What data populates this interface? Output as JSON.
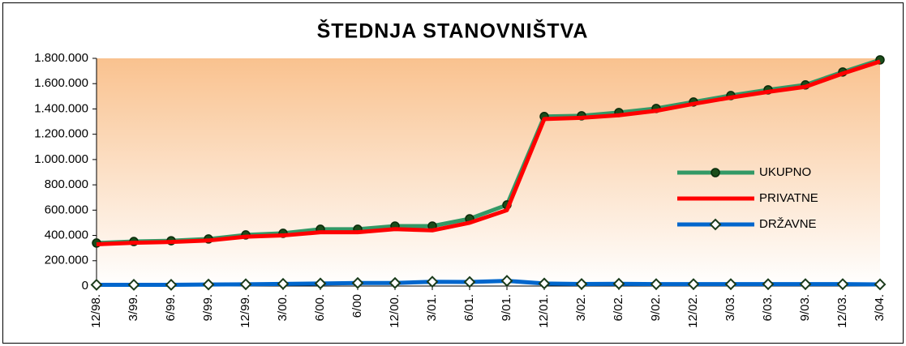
{
  "chart_data": {
    "type": "line",
    "title": "ŠTEDNJA STANOVNIŠTVA",
    "categories": [
      "12/98.",
      "3/99.",
      "6/99.",
      "9/99.",
      "12/99.",
      "3/00.",
      "6/00.",
      "6/00",
      "12/00.",
      "3/01.",
      "6/01.",
      "9/01.",
      "12/01.",
      "3/02.",
      "6/02.",
      "9/02.",
      "12/02.",
      "3/03.",
      "6/03.",
      "9/03.",
      "12/03.",
      "3/04."
    ],
    "series": [
      {
        "name": "UKUPNO",
        "color": "#339966",
        "marker": "circle",
        "values": [
          340000,
          352000,
          358000,
          372000,
          404000,
          417000,
          449000,
          449000,
          474000,
          474000,
          532000,
          641000,
          1340000,
          1346000,
          1372000,
          1404000,
          1455000,
          1506000,
          1551000,
          1590000,
          1692000,
          1788000
        ]
      },
      {
        "name": "PRIVATNE",
        "color": "#ff0000",
        "marker": "none",
        "values": [
          330000,
          342000,
          348000,
          360000,
          390000,
          400000,
          425000,
          425000,
          450000,
          440000,
          500000,
          600000,
          1320000,
          1330000,
          1350000,
          1385000,
          1440000,
          1490000,
          1535000,
          1575000,
          1680000,
          1775000
        ]
      },
      {
        "name": "DRŽAVNE",
        "color": "#0066cc",
        "marker": "diamond",
        "values": [
          10000,
          10000,
          10000,
          12000,
          14000,
          17000,
          20000,
          24000,
          24000,
          34000,
          32000,
          41000,
          20000,
          16000,
          18000,
          15000,
          15000,
          15000,
          15000,
          15000,
          15000,
          13000
        ]
      }
    ],
    "ylim": [
      0,
      1800000
    ],
    "yticks": [
      0,
      {
        "value": 200000,
        "label": "200.000"
      },
      {
        "value": 400000,
        "label": "400.000"
      },
      {
        "value": 600000,
        "label": "600.000"
      },
      {
        "value": 800000,
        "label": "800.000"
      },
      {
        "value": 1000000,
        "label": "1.000.000"
      },
      {
        "value": 1200000,
        "label": "1.200.000"
      },
      {
        "value": 1400000,
        "label": "1.400.000"
      },
      {
        "value": 1600000,
        "label": "1.600.000"
      },
      {
        "value": 1800000,
        "label": "1.800.000"
      }
    ],
    "legend": "right"
  }
}
